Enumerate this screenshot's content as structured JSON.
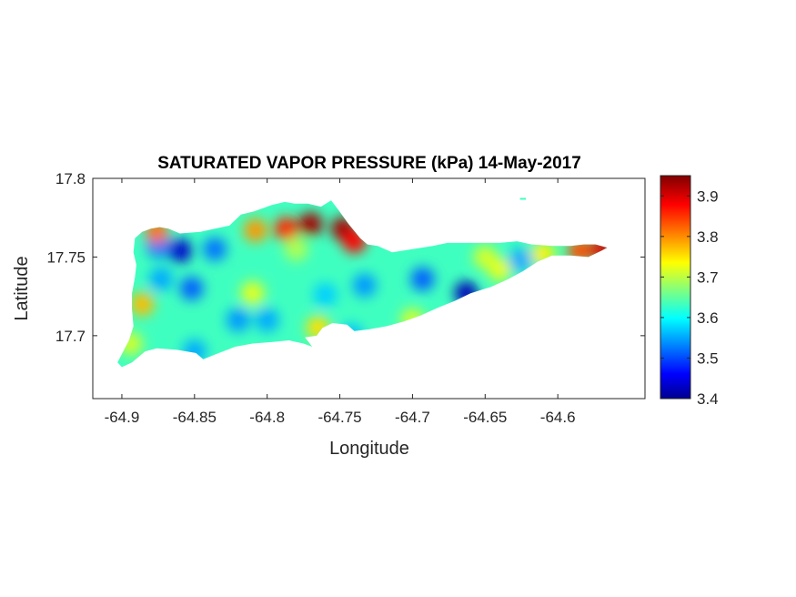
{
  "chart_data": {
    "type": "heatmap",
    "title": "SATURATED VAPOR PRESSURE (kPa) 14-May-2017",
    "xlabel": "Longitude",
    "ylabel": "Latitude",
    "xlim": [
      -64.92,
      -64.54
    ],
    "ylim": [
      17.66,
      17.8
    ],
    "xticks": [
      -64.9,
      -64.85,
      -64.8,
      -64.75,
      -64.7,
      -64.65,
      -64.6
    ],
    "xtick_labels": [
      "-64.9",
      "-64.85",
      "-64.8",
      "-64.75",
      "-64.7",
      "-64.65",
      "-64.6"
    ],
    "yticks": [
      17.7,
      17.75,
      17.8
    ],
    "ytick_labels": [
      "17.7",
      "17.75",
      "17.8"
    ],
    "colorbar": {
      "colormap": "jet",
      "range": [
        3.4,
        3.95
      ],
      "ticks": [
        3.4,
        3.5,
        3.6,
        3.7,
        3.8,
        3.9
      ],
      "tick_labels": [
        "3.4",
        "3.5",
        "3.6",
        "3.7",
        "3.8",
        "3.9"
      ]
    },
    "background_value": 3.64,
    "field_hotspots": [
      {
        "lon": -64.86,
        "lat": 17.754,
        "value": 3.44
      },
      {
        "lon": -64.875,
        "lat": 17.757,
        "value": 3.53
      },
      {
        "lon": -64.836,
        "lat": 17.755,
        "value": 3.53
      },
      {
        "lon": -64.852,
        "lat": 17.73,
        "value": 3.52
      },
      {
        "lon": -64.873,
        "lat": 17.736,
        "value": 3.56
      },
      {
        "lon": -64.82,
        "lat": 17.71,
        "value": 3.55
      },
      {
        "lon": -64.8,
        "lat": 17.71,
        "value": 3.56
      },
      {
        "lon": -64.76,
        "lat": 17.726,
        "value": 3.58
      },
      {
        "lon": -64.733,
        "lat": 17.732,
        "value": 3.55
      },
      {
        "lon": -64.693,
        "lat": 17.736,
        "value": 3.52
      },
      {
        "lon": -64.663,
        "lat": 17.727,
        "value": 3.43
      },
      {
        "lon": -64.626,
        "lat": 17.748,
        "value": 3.56
      },
      {
        "lon": -64.742,
        "lat": 17.7,
        "value": 3.57
      },
      {
        "lon": -64.85,
        "lat": 17.69,
        "value": 3.56
      },
      {
        "lon": -64.886,
        "lat": 17.72,
        "value": 3.78
      },
      {
        "lon": -64.894,
        "lat": 17.695,
        "value": 3.72
      },
      {
        "lon": -64.876,
        "lat": 17.766,
        "value": 3.82
      },
      {
        "lon": -64.808,
        "lat": 17.767,
        "value": 3.8
      },
      {
        "lon": -64.787,
        "lat": 17.768,
        "value": 3.86
      },
      {
        "lon": -64.77,
        "lat": 17.771,
        "value": 3.93
      },
      {
        "lon": -64.748,
        "lat": 17.768,
        "value": 3.93
      },
      {
        "lon": -64.74,
        "lat": 17.76,
        "value": 3.88
      },
      {
        "lon": -64.765,
        "lat": 17.705,
        "value": 3.76
      },
      {
        "lon": -64.7,
        "lat": 17.71,
        "value": 3.72
      },
      {
        "lon": -64.81,
        "lat": 17.727,
        "value": 3.73
      },
      {
        "lon": -64.78,
        "lat": 17.755,
        "value": 3.7
      },
      {
        "lon": -64.65,
        "lat": 17.75,
        "value": 3.72
      },
      {
        "lon": -64.64,
        "lat": 17.742,
        "value": 3.73
      },
      {
        "lon": -64.61,
        "lat": 17.752,
        "value": 3.75
      },
      {
        "lon": -64.585,
        "lat": 17.754,
        "value": 3.84
      },
      {
        "lon": -64.57,
        "lat": 17.755,
        "value": 3.9
      }
    ],
    "land_outline": [
      [
        -64.9,
        17.68
      ],
      [
        -64.893,
        17.683
      ],
      [
        -64.884,
        17.69
      ],
      [
        -64.876,
        17.692
      ],
      [
        -64.862,
        17.691
      ],
      [
        -64.849,
        17.689
      ],
      [
        -64.844,
        17.685
      ],
      [
        -64.836,
        17.688
      ],
      [
        -64.822,
        17.693
      ],
      [
        -64.81,
        17.695
      ],
      [
        -64.796,
        17.696
      ],
      [
        -64.785,
        17.697
      ],
      [
        -64.775,
        17.695
      ],
      [
        -64.769,
        17.693
      ],
      [
        -64.774,
        17.699
      ],
      [
        -64.766,
        17.7
      ],
      [
        -64.762,
        17.705
      ],
      [
        -64.755,
        17.708
      ],
      [
        -64.745,
        17.707
      ],
      [
        -64.74,
        17.703
      ],
      [
        -64.73,
        17.704
      ],
      [
        -64.718,
        17.706
      ],
      [
        -64.706,
        17.709
      ],
      [
        -64.694,
        17.713
      ],
      [
        -64.682,
        17.718
      ],
      [
        -64.671,
        17.722
      ],
      [
        -64.66,
        17.727
      ],
      [
        -64.646,
        17.731
      ],
      [
        -64.634,
        17.736
      ],
      [
        -64.624,
        17.741
      ],
      [
        -64.614,
        17.747
      ],
      [
        -64.604,
        17.751
      ],
      [
        -64.591,
        17.751
      ],
      [
        -64.579,
        17.75
      ],
      [
        -64.57,
        17.754
      ],
      [
        -64.566,
        17.756
      ],
      [
        -64.574,
        17.758
      ],
      [
        -64.582,
        17.758
      ],
      [
        -64.591,
        17.757
      ],
      [
        -64.604,
        17.757
      ],
      [
        -64.618,
        17.758
      ],
      [
        -64.628,
        17.76
      ],
      [
        -64.64,
        17.759
      ],
      [
        -64.652,
        17.759
      ],
      [
        -64.664,
        17.759
      ],
      [
        -64.676,
        17.759
      ],
      [
        -64.686,
        17.757
      ],
      [
        -64.7,
        17.755
      ],
      [
        -64.714,
        17.753
      ],
      [
        -64.724,
        17.757
      ],
      [
        -64.731,
        17.758
      ],
      [
        -64.736,
        17.762
      ],
      [
        -64.744,
        17.771
      ],
      [
        -64.751,
        17.78
      ],
      [
        -64.756,
        17.786
      ],
      [
        -64.763,
        17.782
      ],
      [
        -64.772,
        17.784
      ],
      [
        -64.781,
        17.784
      ],
      [
        -64.788,
        17.785
      ],
      [
        -64.797,
        17.783
      ],
      [
        -64.809,
        17.779
      ],
      [
        -64.818,
        17.777
      ],
      [
        -64.826,
        17.77
      ],
      [
        -64.836,
        17.768
      ],
      [
        -64.846,
        17.766
      ],
      [
        -64.86,
        17.765
      ],
      [
        -64.868,
        17.768
      ],
      [
        -64.874,
        17.769
      ],
      [
        -64.88,
        17.768
      ],
      [
        -64.886,
        17.766
      ],
      [
        -64.891,
        17.762
      ],
      [
        -64.892,
        17.753
      ],
      [
        -64.89,
        17.745
      ],
      [
        -64.891,
        17.737
      ],
      [
        -64.893,
        17.727
      ],
      [
        -64.893,
        17.717
      ],
      [
        -64.892,
        17.706
      ],
      [
        -64.895,
        17.697
      ],
      [
        -64.899,
        17.69
      ],
      [
        -64.903,
        17.683
      ]
    ],
    "islet": {
      "lon": [
        -64.626,
        -64.622
      ],
      "lat": 17.787
    }
  }
}
